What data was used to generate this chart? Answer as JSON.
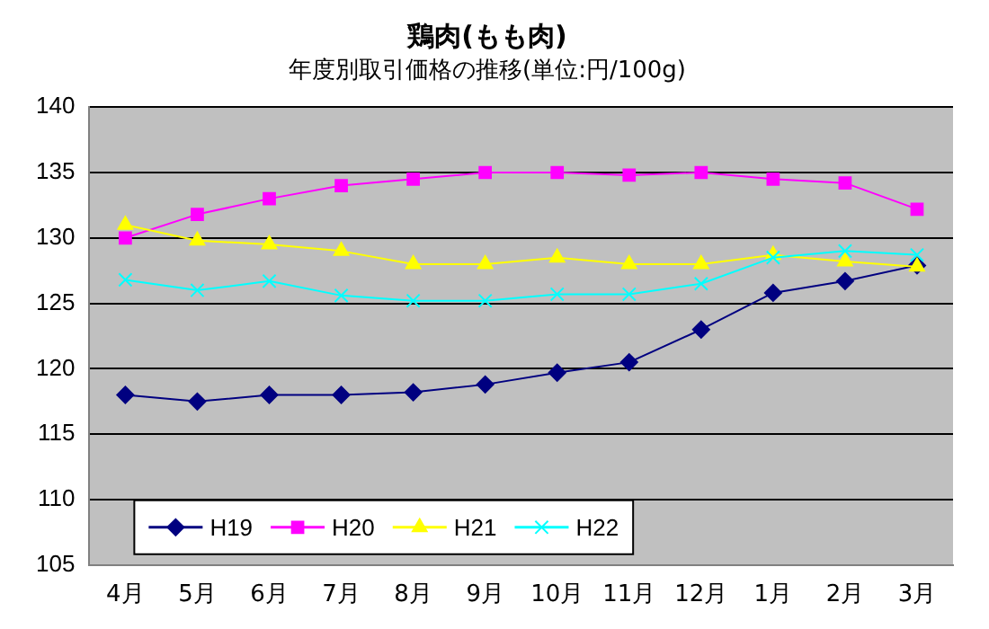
{
  "chart_data": {
    "type": "line",
    "title": "鶏肉(もも肉)",
    "subtitle": "年度別取引価格の推移(単位:円/100g)",
    "categories": [
      "4月",
      "5月",
      "6月",
      "7月",
      "8月",
      "9月",
      "10月",
      "11月",
      "12月",
      "1月",
      "2月",
      "3月"
    ],
    "series": [
      {
        "name": "H19",
        "color": "#000080",
        "marker": "diamond",
        "values": [
          118,
          117.5,
          118,
          118,
          118.2,
          118.8,
          119.7,
          120.5,
          123,
          125.8,
          126.7,
          127.9
        ]
      },
      {
        "name": "H20",
        "color": "#ff00ff",
        "marker": "square",
        "values": [
          130,
          131.8,
          133,
          134,
          134.5,
          135,
          135,
          134.8,
          135,
          134.5,
          134.2,
          132.2
        ]
      },
      {
        "name": "H21",
        "color": "#ffff00",
        "marker": "triangle",
        "values": [
          131,
          129.8,
          129.5,
          129,
          128,
          128,
          128.5,
          128,
          128,
          128.7,
          128.2,
          127.8
        ]
      },
      {
        "name": "H22",
        "color": "#00ffff",
        "marker": "cross",
        "values": [
          126.8,
          126,
          126.7,
          125.6,
          125.2,
          125.2,
          125.7,
          125.7,
          126.5,
          128.5,
          129,
          128.7
        ]
      }
    ],
    "ylim": [
      105,
      140
    ],
    "yticks": [
      105,
      110,
      115,
      120,
      125,
      130,
      135,
      140
    ],
    "grid": "y",
    "legend": "bottom left"
  }
}
